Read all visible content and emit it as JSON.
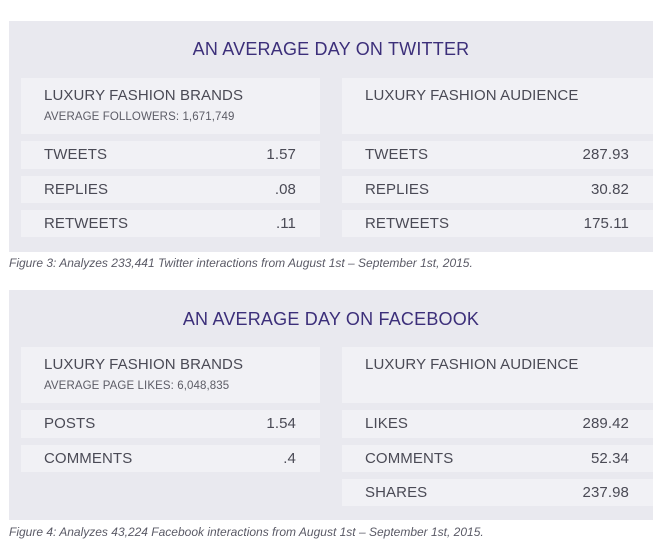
{
  "twitter": {
    "title": "AN AVERAGE DAY ON TWITTER",
    "brands": {
      "heading": "LUXURY FASHION BRANDS",
      "subheading": "AVERAGE FOLLOWERS: 1,671,749",
      "rows": [
        {
          "label": "TWEETS",
          "value": "1.57"
        },
        {
          "label": "REPLIES",
          "value": ".08"
        },
        {
          "label": "RETWEETS",
          "value": ".11"
        }
      ]
    },
    "audience": {
      "heading": "LUXURY FASHION AUDIENCE",
      "rows": [
        {
          "label": "TWEETS",
          "value": "287.93"
        },
        {
          "label": "REPLIES",
          "value": "30.82"
        },
        {
          "label": "RETWEETS",
          "value": "175.11"
        }
      ]
    },
    "caption": "Figure 3: Analyzes 233,441 Twitter interactions from August 1st – September 1st, 2015."
  },
  "facebook": {
    "title": "AN AVERAGE DAY ON FACEBOOK",
    "brands": {
      "heading": "LUXURY FASHION BRANDS",
      "subheading": "AVERAGE PAGE LIKES: 6,048,835",
      "rows": [
        {
          "label": "POSTS",
          "value": "1.54"
        },
        {
          "label": "COMMENTS",
          "value": ".4"
        }
      ]
    },
    "audience": {
      "heading": "LUXURY FASHION AUDIENCE",
      "rows": [
        {
          "label": "LIKES",
          "value": "289.42"
        },
        {
          "label": "COMMENTS",
          "value": "52.34"
        },
        {
          "label": "SHARES",
          "value": "237.98"
        }
      ]
    },
    "caption": "Figure 4: Analyzes 43,224 Facebook interactions from August 1st – September 1st, 2015."
  },
  "colors": {
    "panel_bg": "#e9e9ef",
    "cell_bg": "#f1f1f5",
    "title_color": "#3c2f7a",
    "text_color": "#4a4a55"
  }
}
